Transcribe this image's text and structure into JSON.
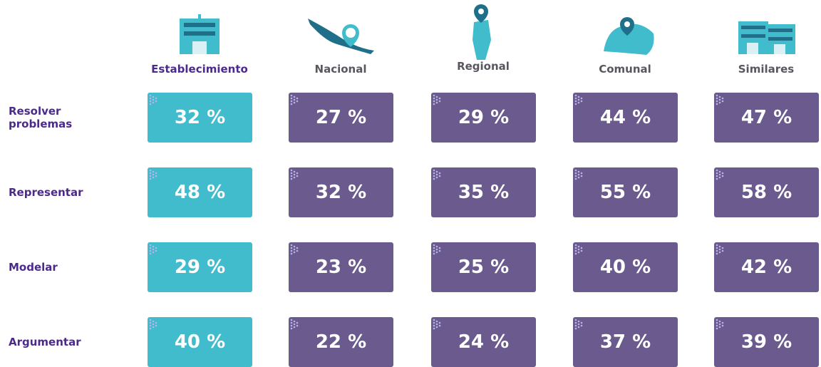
{
  "table": {
    "columns": [
      "Establecimiento",
      "Nacional",
      "Regional",
      "Comunal",
      "Similares"
    ],
    "rows": [
      {
        "label": "Resolver problemas",
        "cells": [
          "32 %",
          "27 %",
          "29 %",
          "44 %",
          "47 %"
        ]
      },
      {
        "label": "Representar",
        "cells": [
          "48 %",
          "32 %",
          "35 %",
          "55 %",
          "58 %"
        ]
      },
      {
        "label": "Modelar",
        "cells": [
          "29 %",
          "23 %",
          "25 %",
          "40 %",
          "42 %"
        ]
      },
      {
        "label": "Argumentar",
        "cells": [
          "40 %",
          "22 %",
          "24 %",
          "37 %",
          "39 %"
        ]
      }
    ]
  }
}
